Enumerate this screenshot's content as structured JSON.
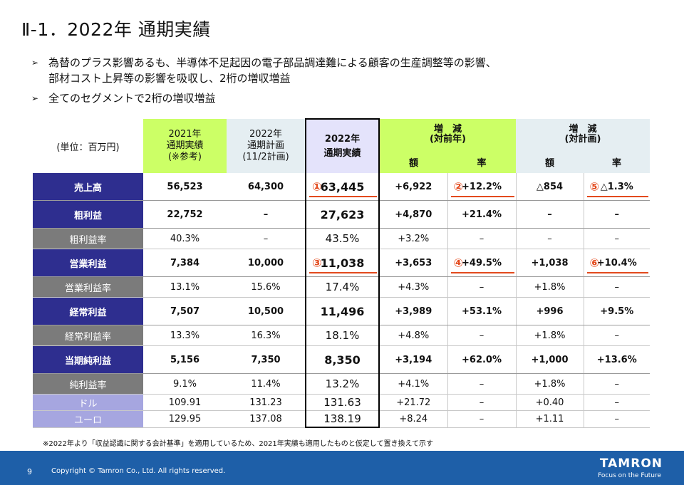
{
  "title": "Ⅱ-1．2022年 通期実績",
  "bullets": [
    "為替のプラス影響あるも、半導体不足起因の電子部品調達難による顧客の生産調整等の影響、",
    "部材コスト上昇等の影響を吸収し、2桁の増収増益",
    "全てのセグメントで2桁の増収増益"
  ],
  "table": {
    "unit_label": "(単位：百万円)",
    "col_2021": [
      "2021年",
      "通期実績",
      "(※参考)"
    ],
    "col_plan": [
      "2022年",
      "通期計画",
      "(11/2計画)"
    ],
    "col_2022": [
      "2022年",
      "通期実績"
    ],
    "col_yoy": [
      "増　減",
      "(対前年)"
    ],
    "col_vsplan": [
      "増　減",
      "(対計画)"
    ],
    "sub_amount": "額",
    "sub_rate": "率",
    "rows": [
      {
        "label": "売上高",
        "v2021": "56,523",
        "plan": "64,300",
        "v2022": "63,445",
        "yoy_amt": "+6,922",
        "yoy_rate": "+12.2%",
        "vp_amt": "△854",
        "vp_rate": "△1.3%"
      },
      {
        "label": "粗利益",
        "v2021": "22,752",
        "plan": "–",
        "v2022": "27,623",
        "yoy_amt": "+4,870",
        "yoy_rate": "+21.4%",
        "vp_amt": "–",
        "vp_rate": "–"
      },
      {
        "label": "粗利益率",
        "v2021": "40.3%",
        "plan": "–",
        "v2022": "43.5%",
        "yoy_amt": "+3.2%",
        "yoy_rate": "–",
        "vp_amt": "–",
        "vp_rate": "–"
      },
      {
        "label": "営業利益",
        "v2021": "7,384",
        "plan": "10,000",
        "v2022": "11,038",
        "yoy_amt": "+3,653",
        "yoy_rate": "+49.5%",
        "vp_amt": "+1,038",
        "vp_rate": "+10.4%"
      },
      {
        "label": "営業利益率",
        "v2021": "13.1%",
        "plan": "15.6%",
        "v2022": "17.4%",
        "yoy_amt": "+4.3%",
        "yoy_rate": "–",
        "vp_amt": "+1.8%",
        "vp_rate": "–"
      },
      {
        "label": "経常利益",
        "v2021": "7,507",
        "plan": "10,500",
        "v2022": "11,496",
        "yoy_amt": "+3,989",
        "yoy_rate": "+53.1%",
        "vp_amt": "+996",
        "vp_rate": "+9.5%"
      },
      {
        "label": "経常利益率",
        "v2021": "13.3%",
        "plan": "16.3%",
        "v2022": "18.1%",
        "yoy_amt": "+4.8%",
        "yoy_rate": "–",
        "vp_amt": "+1.8%",
        "vp_rate": "–"
      },
      {
        "label": "当期純利益",
        "v2021": "5,156",
        "plan": "7,350",
        "v2022": "8,350",
        "yoy_amt": "+3,194",
        "yoy_rate": "+62.0%",
        "vp_amt": "+1,000",
        "vp_rate": "+13.6%"
      },
      {
        "label": "純利益率",
        "v2021": "9.1%",
        "plan": "11.4%",
        "v2022": "13.2%",
        "yoy_amt": "+4.1%",
        "yoy_rate": "–",
        "vp_amt": "+1.8%",
        "vp_rate": "–"
      },
      {
        "label": "ドル",
        "v2021": "109.91",
        "plan": "131.23",
        "v2022": "131.63",
        "yoy_amt": "+21.72",
        "yoy_rate": "–",
        "vp_amt": "+0.40",
        "vp_rate": "–"
      },
      {
        "label": "ユーロ",
        "v2021": "129.95",
        "plan": "137.08",
        "v2022": "138.19",
        "yoy_amt": "+8.24",
        "yoy_rate": "–",
        "vp_amt": "+1.11",
        "vp_rate": "–"
      }
    ],
    "markers": [
      "①",
      "②",
      "③",
      "④",
      "⑤",
      "⑥"
    ]
  },
  "footnote": "※2022年より「収益認識に関する会計基準」を適用しているため、2021年実績も適用したものと仮定して置き換えて示す",
  "footer": {
    "page_number": "9",
    "copyright": "Copyright © Tamron Co., Ltd. All rights reserved.",
    "brand": "TAMRON",
    "tagline": "Focus on the Future"
  },
  "colors": {
    "yoy_header": "#ccff66",
    "plan_header": "#e5eef2",
    "actual_header": "#e4e3fb",
    "label_main": "#2e2e8f",
    "label_ratio": "#7b7b7b",
    "label_fx": "#a6a6e0",
    "marker": "#e34a1d",
    "footer_bg": "#1e5fa8"
  }
}
